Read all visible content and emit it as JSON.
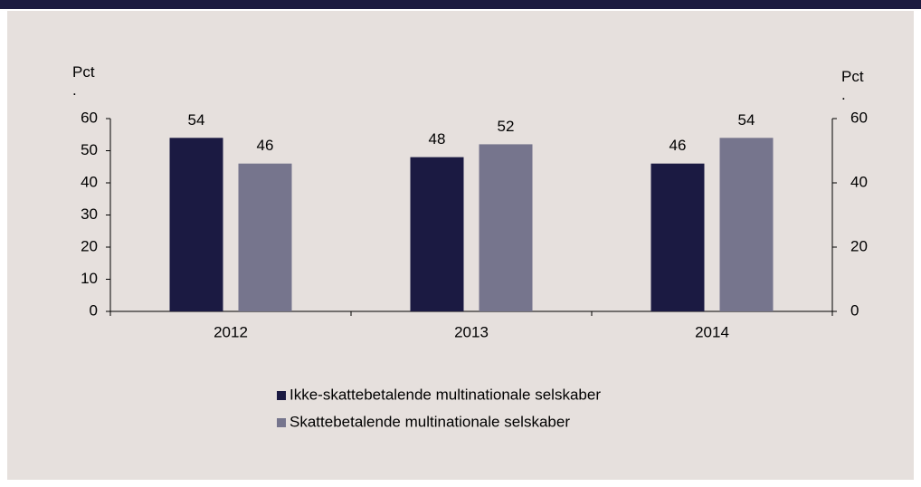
{
  "chart_data": {
    "type": "bar",
    "y_label": "Pct\n.",
    "y2_label": "Pct\n.",
    "categories": [
      "2012",
      "2013",
      "2014"
    ],
    "series": [
      {
        "name": "Ikke-skattebetalende multinationale selskaber",
        "color": "#1b1a42",
        "values": [
          54,
          48,
          46
        ]
      },
      {
        "name": "Skattebetalende multinationale selskaber",
        "color": "#76758d",
        "values": [
          46,
          52,
          54
        ]
      }
    ],
    "ylim": [
      0,
      60
    ],
    "yticks": [
      0,
      10,
      20,
      30,
      40,
      50,
      60
    ],
    "y2lim": [
      0,
      60
    ],
    "y2ticks": [
      0,
      20,
      40,
      60
    ]
  }
}
